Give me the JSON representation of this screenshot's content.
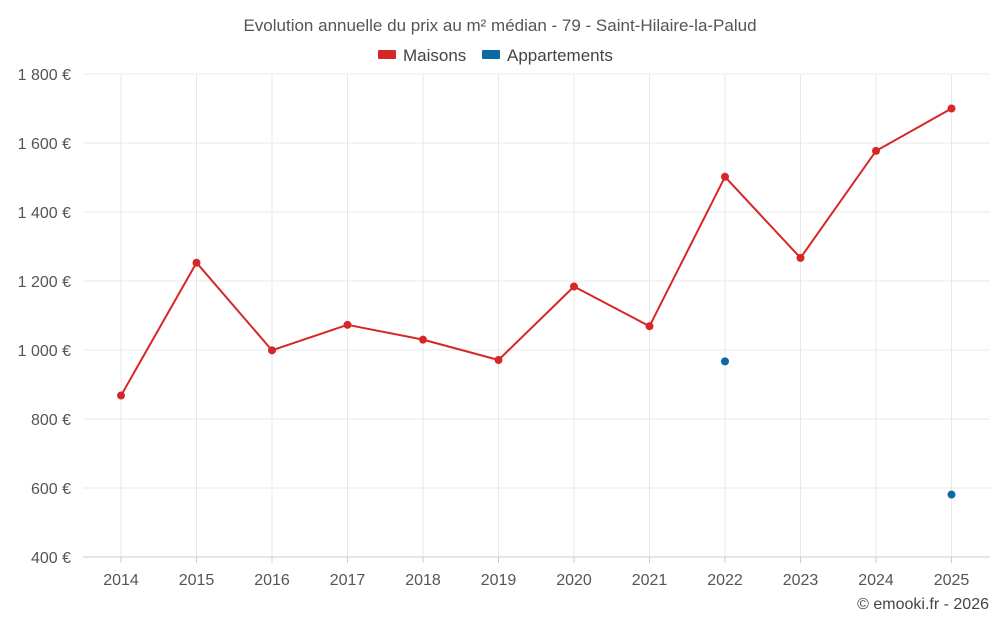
{
  "chart_data": {
    "type": "line",
    "title": "Evolution annuelle du prix au m² médian - 79 - Saint-Hilaire-la-Palud",
    "categories": [
      "2014",
      "2015",
      "2016",
      "2017",
      "2018",
      "2019",
      "2020",
      "2021",
      "2022",
      "2023",
      "2024",
      "2025"
    ],
    "series": [
      {
        "name": "Maisons",
        "color": "#d62728",
        "values": [
          868,
          1253,
          999,
          1073,
          1030,
          971,
          1184,
          1069,
          1502,
          1267,
          1577,
          1700
        ]
      },
      {
        "name": "Appartements",
        "color": "#0a6aa1",
        "values": [
          null,
          null,
          null,
          null,
          null,
          null,
          null,
          null,
          967,
          null,
          null,
          581
        ]
      }
    ],
    "ylim": [
      400,
      1800
    ],
    "yticks": [
      400,
      600,
      800,
      1000,
      1200,
      1400,
      1600,
      1800
    ],
    "ytick_labels": [
      "400 €",
      "600 €",
      "800 €",
      "1 000 €",
      "1 200 €",
      "1 400 €",
      "1 600 €",
      "1 800 €"
    ],
    "xlabel": "",
    "ylabel": "",
    "legend_position": "top-center",
    "grid": true
  },
  "credit": "© emooki.fr - 2026"
}
